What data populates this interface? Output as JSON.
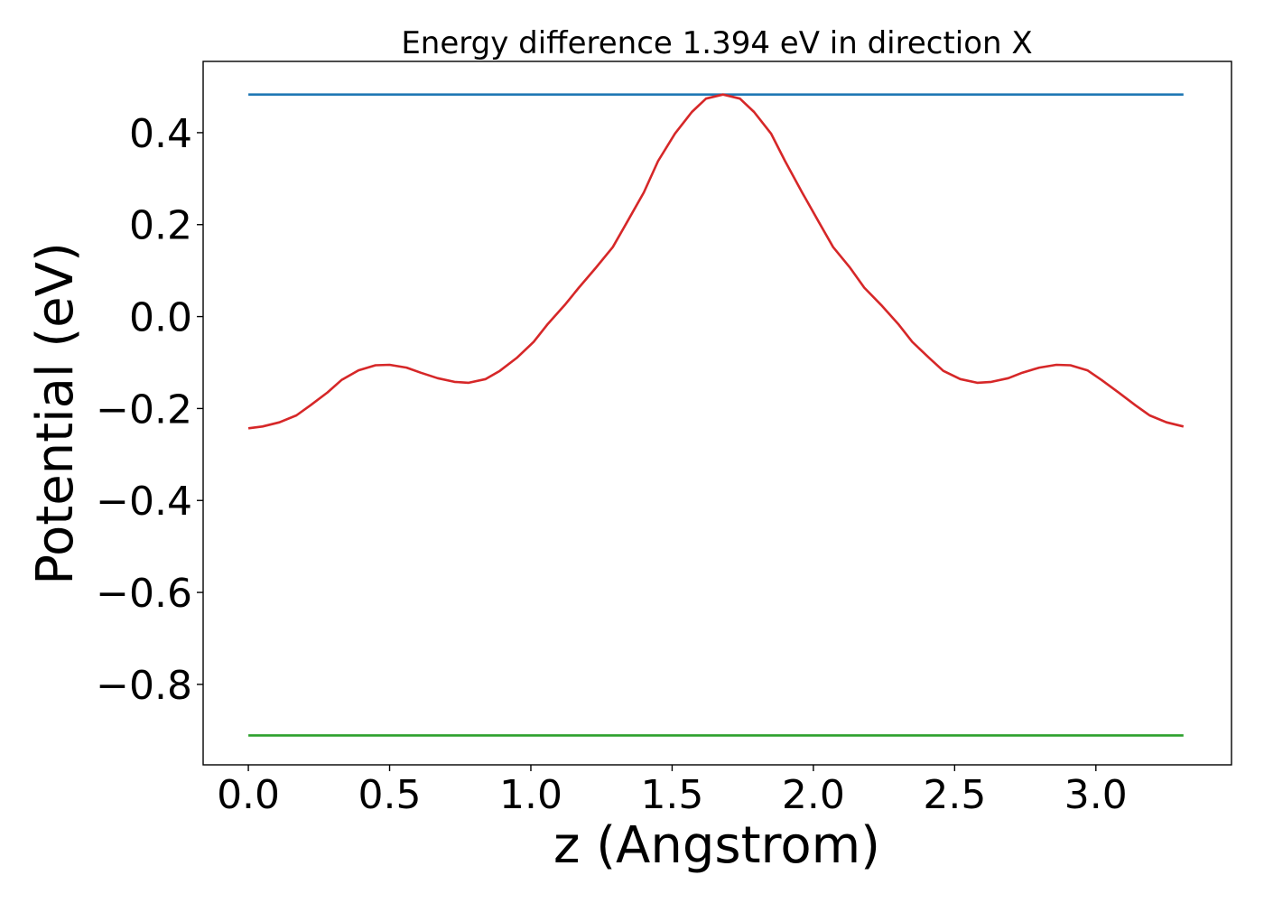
{
  "chart_data": {
    "type": "line",
    "title": "Energy difference 1.394 eV in direction X",
    "xlabel": "z (Angstrom)",
    "ylabel": "Potential (eV)",
    "xlim": [
      -0.16,
      3.48
    ],
    "ylim": [
      -0.975,
      0.555
    ],
    "grid": false,
    "xticks": [
      0.0,
      0.5,
      1.0,
      1.5,
      2.0,
      2.5,
      3.0
    ],
    "xtick_labels": [
      "0.0",
      "0.5",
      "1.0",
      "1.5",
      "2.0",
      "2.5",
      "3.0"
    ],
    "yticks": [
      0.4,
      0.2,
      0.0,
      -0.2,
      -0.4,
      -0.6,
      -0.8
    ],
    "ytick_labels": [
      "0.4",
      "0.2",
      "0.0",
      "−0.2",
      "−0.4",
      "−0.6",
      "−0.8"
    ],
    "series": [
      {
        "color": "#1f77b4",
        "x": [
          0.0,
          3.31
        ],
        "y": [
          0.483,
          0.483
        ]
      },
      {
        "color": "#d62728",
        "x": [
          0.0,
          0.05,
          0.11,
          0.17,
          0.22,
          0.28,
          0.33,
          0.39,
          0.45,
          0.5,
          0.56,
          0.61,
          0.67,
          0.73,
          0.78,
          0.84,
          0.89,
          0.95,
          1.01,
          1.06,
          1.12,
          1.17,
          1.23,
          1.29,
          1.34,
          1.4,
          1.45,
          1.51,
          1.57,
          1.62,
          1.68,
          1.74,
          1.79,
          1.85,
          1.9,
          1.96,
          2.02,
          2.07,
          2.13,
          2.18,
          2.24,
          2.3,
          2.35,
          2.41,
          2.46,
          2.52,
          2.58,
          2.63,
          2.69,
          2.74,
          2.8,
          2.86,
          2.91,
          2.97,
          3.02,
          3.08,
          3.14,
          3.19,
          3.25,
          3.31
        ],
        "y": [
          -0.243,
          -0.239,
          -0.23,
          -0.215,
          -0.193,
          -0.165,
          -0.138,
          -0.117,
          -0.106,
          -0.105,
          -0.111,
          -0.122,
          -0.134,
          -0.142,
          -0.144,
          -0.136,
          -0.118,
          -0.09,
          -0.055,
          -0.016,
          0.025,
          0.063,
          0.106,
          0.151,
          0.205,
          0.27,
          0.338,
          0.398,
          0.445,
          0.474,
          0.483,
          0.474,
          0.445,
          0.398,
          0.338,
          0.27,
          0.205,
          0.151,
          0.106,
          0.063,
          0.025,
          -0.016,
          -0.055,
          -0.09,
          -0.118,
          -0.136,
          -0.144,
          -0.142,
          -0.134,
          -0.122,
          -0.111,
          -0.105,
          -0.106,
          -0.117,
          -0.138,
          -0.165,
          -0.193,
          -0.215,
          -0.23,
          -0.239
        ]
      },
      {
        "color": "#2ca02c",
        "x": [
          0.0,
          3.31
        ],
        "y": [
          -0.911,
          -0.911
        ]
      }
    ]
  }
}
